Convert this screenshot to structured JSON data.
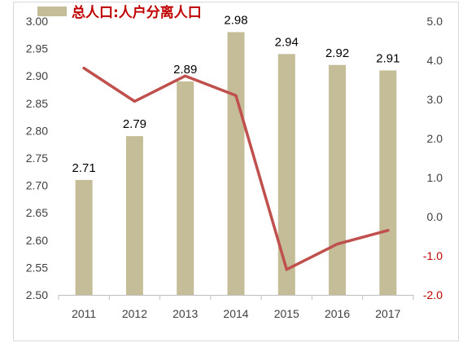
{
  "chart_data": {
    "type": "bar-line-combo",
    "categories": [
      "2011",
      "2012",
      "2013",
      "2014",
      "2015",
      "2016",
      "2017"
    ],
    "series": [
      {
        "name": "总人口",
        "type": "bar",
        "axis": "left",
        "values": [
          2.71,
          2.79,
          2.89,
          2.98,
          2.94,
          2.92,
          2.91
        ],
        "data_labels": [
          "2.71",
          "2.79",
          "2.89",
          "2.98",
          "2.94",
          "2.92",
          "2.91"
        ],
        "color": "#c4bd97"
      },
      {
        "name": "人户分离人口",
        "type": "line",
        "axis": "right",
        "values": [
          3.8,
          2.95,
          3.6,
          3.1,
          -1.35,
          -0.7,
          -0.35
        ],
        "color": "#c0504d"
      }
    ],
    "y_left": {
      "min": 2.5,
      "max": 3.0,
      "step": 0.05,
      "tick_labels": [
        "2.50",
        "2.55",
        "2.60",
        "2.65",
        "2.70",
        "2.75",
        "2.80",
        "2.85",
        "2.90",
        "2.95",
        "3.00"
      ]
    },
    "y_right": {
      "min": -2.0,
      "max": 5.0,
      "step": 1.0,
      "tick_labels": [
        "-2.0",
        "-1.0",
        "0.0",
        "1.0",
        "2.0",
        "3.0",
        "4.0",
        "5.0"
      ],
      "negative_color": "#c00000"
    },
    "legend_text": "总人口:人户分离人口",
    "legend_placement": "top-left",
    "grid": false
  }
}
